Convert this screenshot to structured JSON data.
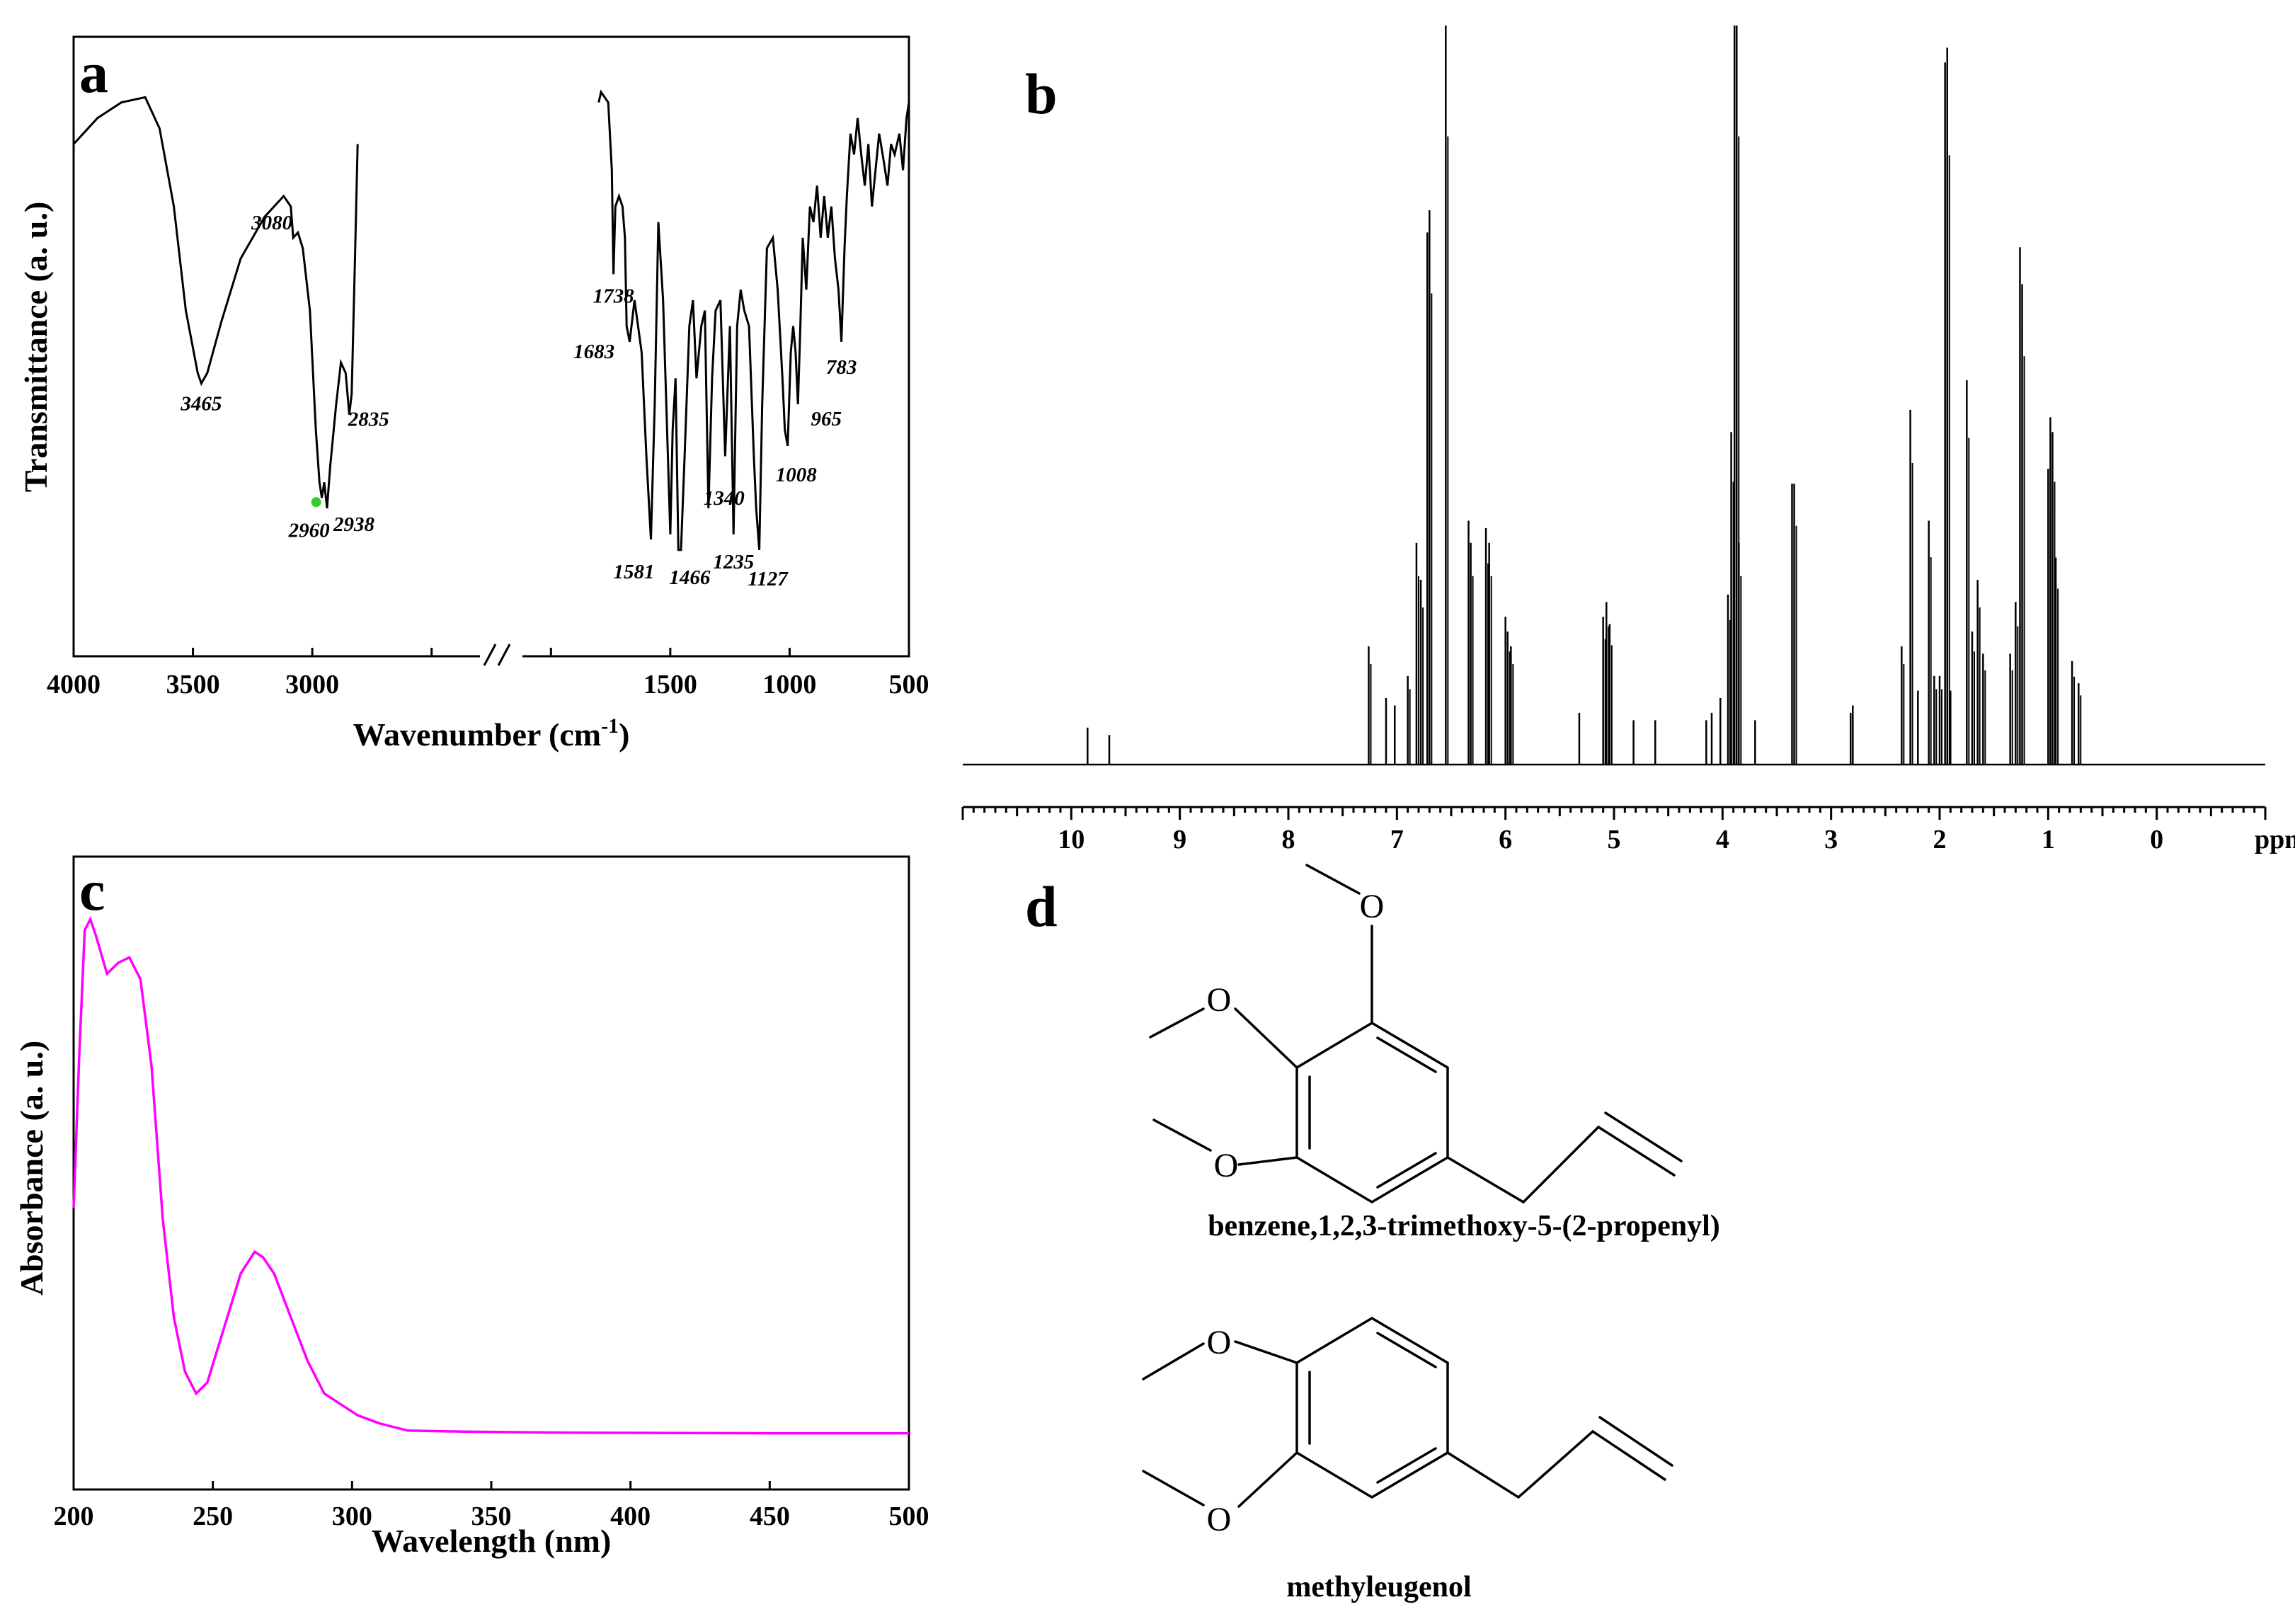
{
  "chart_data": [
    {
      "panel": "a",
      "type": "line",
      "title": "",
      "xlabel": "Wavenumber (cm",
      "xlabel_sup": "-1",
      "xlabel_close": ")",
      "ylabel": "Transmittance (a. u.)",
      "xlim": [
        4000,
        500
      ],
      "x_ticks": [
        4000,
        3500,
        3000,
        2500,
        2000,
        1500,
        1000,
        500
      ],
      "x_tick_labels": [
        "4000",
        "3500",
        "3000",
        "1500",
        "1000",
        "500"
      ],
      "axis_break_between": [
        2800,
        1800
      ],
      "peaks": [
        {
          "x": 3465,
          "label": "3465"
        },
        {
          "x": 3080,
          "label": "3080"
        },
        {
          "x": 2960,
          "label": "2960"
        },
        {
          "x": 2938,
          "label": "2938"
        },
        {
          "x": 2835,
          "label": "2835"
        },
        {
          "x": 1738,
          "label": "1738"
        },
        {
          "x": 1683,
          "label": "1683"
        },
        {
          "x": 1581,
          "label": "1581"
        },
        {
          "x": 1466,
          "label": "1466"
        },
        {
          "x": 1340,
          "label": "1340"
        },
        {
          "x": 1235,
          "label": "1235"
        },
        {
          "x": 1127,
          "label": "1127"
        },
        {
          "x": 1008,
          "label": "1008"
        },
        {
          "x": 965,
          "label": "965"
        },
        {
          "x": 783,
          "label": "783"
        }
      ],
      "series": [
        {
          "segment": 1,
          "points": [
            [
              4000,
              0.9
            ],
            [
              3900,
              0.95
            ],
            [
              3800,
              0.98
            ],
            [
              3700,
              0.99
            ],
            [
              3640,
              0.93
            ],
            [
              3580,
              0.78
            ],
            [
              3530,
              0.58
            ],
            [
              3480,
              0.46
            ],
            [
              3465,
              0.44
            ],
            [
              3440,
              0.46
            ],
            [
              3380,
              0.56
            ],
            [
              3300,
              0.68
            ],
            [
              3200,
              0.76
            ],
            [
              3120,
              0.8
            ],
            [
              3090,
              0.78
            ],
            [
              3080,
              0.72
            ],
            [
              3060,
              0.73
            ],
            [
              3040,
              0.7
            ],
            [
              3010,
              0.58
            ],
            [
              2985,
              0.35
            ],
            [
              2970,
              0.25
            ],
            [
              2960,
              0.22
            ],
            [
              2950,
              0.25
            ],
            [
              2938,
              0.2
            ],
            [
              2925,
              0.28
            ],
            [
              2900,
              0.4
            ],
            [
              2880,
              0.48
            ],
            [
              2860,
              0.46
            ],
            [
              2845,
              0.38
            ],
            [
              2835,
              0.42
            ],
            [
              2820,
              0.7
            ],
            [
              2810,
              0.9
            ]
          ]
        },
        {
          "segment": 2,
          "points": [
            [
              1800,
              0.98
            ],
            [
              1790,
              1.0
            ],
            [
              1760,
              0.98
            ],
            [
              1745,
              0.85
            ],
            [
              1738,
              0.65
            ],
            [
              1730,
              0.78
            ],
            [
              1715,
              0.8
            ],
            [
              1700,
              0.78
            ],
            [
              1690,
              0.72
            ],
            [
              1683,
              0.55
            ],
            [
              1670,
              0.52
            ],
            [
              1650,
              0.6
            ],
            [
              1620,
              0.5
            ],
            [
              1600,
              0.3
            ],
            [
              1581,
              0.14
            ],
            [
              1565,
              0.4
            ],
            [
              1550,
              0.75
            ],
            [
              1530,
              0.6
            ],
            [
              1510,
              0.3
            ],
            [
              1500,
              0.15
            ],
            [
              1490,
              0.35
            ],
            [
              1478,
              0.45
            ],
            [
              1466,
              0.12
            ],
            [
              1455,
              0.12
            ],
            [
              1440,
              0.3
            ],
            [
              1420,
              0.55
            ],
            [
              1405,
              0.6
            ],
            [
              1390,
              0.45
            ],
            [
              1370,
              0.55
            ],
            [
              1355,
              0.58
            ],
            [
              1340,
              0.2
            ],
            [
              1325,
              0.45
            ],
            [
              1310,
              0.58
            ],
            [
              1290,
              0.6
            ],
            [
              1270,
              0.3
            ],
            [
              1250,
              0.55
            ],
            [
              1235,
              0.15
            ],
            [
              1220,
              0.55
            ],
            [
              1205,
              0.62
            ],
            [
              1190,
              0.58
            ],
            [
              1170,
              0.55
            ],
            [
              1150,
              0.3
            ],
            [
              1140,
              0.2
            ],
            [
              1127,
              0.12
            ],
            [
              1115,
              0.4
            ],
            [
              1095,
              0.7
            ],
            [
              1070,
              0.72
            ],
            [
              1050,
              0.62
            ],
            [
              1030,
              0.45
            ],
            [
              1020,
              0.35
            ],
            [
              1008,
              0.32
            ],
            [
              995,
              0.5
            ],
            [
              985,
              0.55
            ],
            [
              975,
              0.5
            ],
            [
              965,
              0.4
            ],
            [
              955,
              0.55
            ],
            [
              945,
              0.72
            ],
            [
              930,
              0.62
            ],
            [
              915,
              0.78
            ],
            [
              900,
              0.75
            ],
            [
              885,
              0.82
            ],
            [
              870,
              0.72
            ],
            [
              855,
              0.8
            ],
            [
              840,
              0.72
            ],
            [
              825,
              0.78
            ],
            [
              810,
              0.68
            ],
            [
              795,
              0.62
            ],
            [
              783,
              0.52
            ],
            [
              770,
              0.7
            ],
            [
              760,
              0.8
            ],
            [
              745,
              0.92
            ],
            [
              730,
              0.88
            ],
            [
              715,
              0.95
            ],
            [
              700,
              0.88
            ],
            [
              685,
              0.82
            ],
            [
              670,
              0.9
            ],
            [
              655,
              0.78
            ],
            [
              640,
              0.85
            ],
            [
              625,
              0.92
            ],
            [
              610,
              0.88
            ],
            [
              590,
              0.82
            ],
            [
              575,
              0.9
            ],
            [
              560,
              0.88
            ],
            [
              540,
              0.92
            ],
            [
              525,
              0.85
            ],
            [
              510,
              0.95
            ],
            [
              500,
              0.98
            ]
          ]
        }
      ]
    },
    {
      "panel": "b",
      "type": "line",
      "title": "",
      "xlabel": "",
      "ylabel": "",
      "xlim": [
        11,
        -1
      ],
      "x_ticks": [
        10,
        9,
        8,
        7,
        6,
        5,
        4,
        3,
        2,
        1,
        0
      ],
      "x_tick_labels": [
        "10",
        "9",
        "8",
        "7",
        "6",
        "5",
        "4",
        "3",
        "2",
        "1",
        "0"
      ],
      "unit_label": "ppm",
      "series": [
        {
          "name": "",
          "peaks": [
            [
              9.85,
              0.05
            ],
            [
              9.65,
              0.04
            ],
            [
              7.26,
              0.16
            ],
            [
              7.1,
              0.09
            ],
            [
              7.02,
              0.08
            ],
            [
              6.9,
              0.12
            ],
            [
              6.82,
              0.3
            ],
            [
              6.78,
              0.25
            ],
            [
              6.72,
              0.72
            ],
            [
              6.7,
              0.75
            ],
            [
              6.55,
              1.0
            ],
            [
              6.34,
              0.33
            ],
            [
              6.32,
              0.3
            ],
            [
              6.18,
              0.32
            ],
            [
              6.15,
              0.3
            ],
            [
              6.0,
              0.2
            ],
            [
              5.98,
              0.18
            ],
            [
              5.95,
              0.16
            ],
            [
              5.32,
              0.07
            ],
            [
              5.1,
              0.2
            ],
            [
              5.07,
              0.22
            ],
            [
              5.04,
              0.19
            ],
            [
              4.82,
              0.06
            ],
            [
              4.62,
              0.06
            ],
            [
              4.15,
              0.06
            ],
            [
              4.1,
              0.07
            ],
            [
              4.02,
              0.09
            ],
            [
              3.95,
              0.23
            ],
            [
              3.92,
              0.45
            ],
            [
              3.89,
              1.0
            ],
            [
              3.87,
              1.0
            ],
            [
              3.85,
              0.3
            ],
            [
              3.7,
              0.06
            ],
            [
              3.36,
              0.38
            ],
            [
              3.34,
              0.38
            ],
            [
              2.82,
              0.07
            ],
            [
              2.8,
              0.08
            ],
            [
              2.35,
              0.16
            ],
            [
              2.27,
              0.48
            ],
            [
              2.2,
              0.1
            ],
            [
              2.1,
              0.33
            ],
            [
              2.05,
              0.12
            ],
            [
              2.0,
              0.12
            ],
            [
              1.95,
              0.95
            ],
            [
              1.93,
              0.97
            ],
            [
              1.9,
              0.1
            ],
            [
              1.75,
              0.52
            ],
            [
              1.7,
              0.18
            ],
            [
              1.65,
              0.25
            ],
            [
              1.6,
              0.15
            ],
            [
              1.35,
              0.15
            ],
            [
              1.3,
              0.22
            ],
            [
              1.26,
              0.7
            ],
            [
              1.24,
              0.65
            ],
            [
              1.0,
              0.4
            ],
            [
              0.98,
              0.47
            ],
            [
              0.96,
              0.45
            ],
            [
              0.93,
              0.28
            ],
            [
              0.78,
              0.14
            ],
            [
              0.72,
              0.11
            ]
          ]
        }
      ]
    },
    {
      "panel": "c",
      "type": "line",
      "title": "",
      "xlabel": "Wavelength (nm)",
      "ylabel": "Absorbance (a. u.)",
      "xlim": [
        200,
        500
      ],
      "x_ticks": [
        200,
        250,
        300,
        350,
        400,
        450,
        500
      ],
      "color": "#ff00ff",
      "series": [
        {
          "name": "",
          "points": [
            [
              200,
              0.42
            ],
            [
              202,
              0.7
            ],
            [
              204,
              0.93
            ],
            [
              206,
              0.95
            ],
            [
              208,
              0.92
            ],
            [
              212,
              0.85
            ],
            [
              216,
              0.87
            ],
            [
              220,
              0.88
            ],
            [
              224,
              0.84
            ],
            [
              228,
              0.68
            ],
            [
              232,
              0.4
            ],
            [
              236,
              0.22
            ],
            [
              240,
              0.12
            ],
            [
              244,
              0.08
            ],
            [
              248,
              0.1
            ],
            [
              254,
              0.2
            ],
            [
              260,
              0.3
            ],
            [
              265,
              0.34
            ],
            [
              268,
              0.33
            ],
            [
              272,
              0.3
            ],
            [
              278,
              0.22
            ],
            [
              284,
              0.14
            ],
            [
              290,
              0.08
            ],
            [
              296,
              0.06
            ],
            [
              302,
              0.04
            ],
            [
              310,
              0.025
            ],
            [
              320,
              0.012
            ],
            [
              340,
              0.01
            ],
            [
              380,
              0.008
            ],
            [
              450,
              0.007
            ],
            [
              500,
              0.007
            ]
          ]
        }
      ]
    }
  ],
  "panel_labels": {
    "a": "a",
    "b": "b",
    "c": "c",
    "d": "d"
  },
  "structures": {
    "atom_O": "O",
    "compound1_name": "benzene,1,2,3-trimethoxy-5-(2-propenyl)",
    "compound2_name": "methyleugenol"
  },
  "colors": {
    "uv_line": "#ff00ff",
    "marker_2960": "#33cc33"
  }
}
